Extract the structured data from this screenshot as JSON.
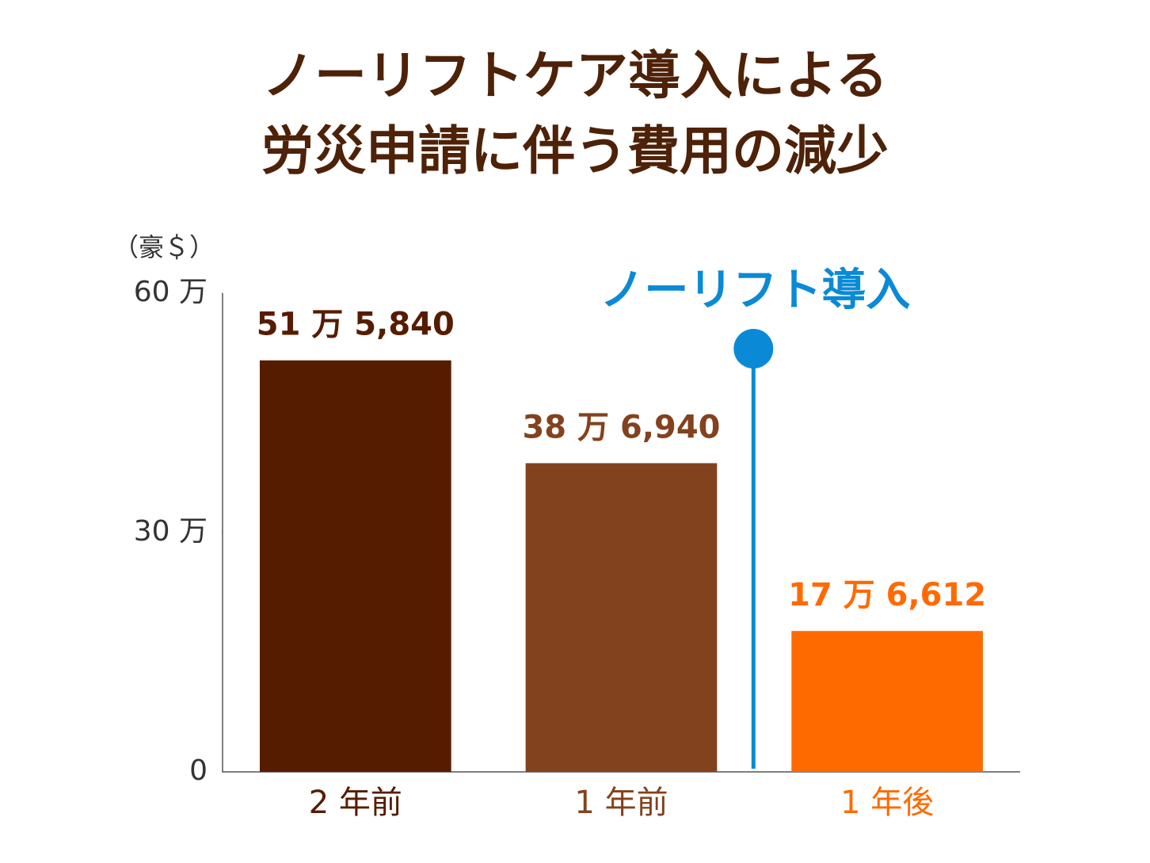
{
  "chart_data": {
    "type": "bar",
    "title": [
      "ノーリフトケア導入による",
      "労災申請に伴う費用の減少"
    ],
    "y_unit": "（豪＄）",
    "categories": [
      "2 年前",
      "1 年前",
      "1 年後"
    ],
    "values": [
      515840,
      386940,
      176612
    ],
    "value_labels": [
      "51 万 5,840",
      "38 万 6,940",
      "17 万 6,612"
    ],
    "colors": [
      "#561c00",
      "#83421e",
      "#ff6a00"
    ],
    "ylim": [
      0,
      600000
    ],
    "yticks": [
      0,
      {
        "value": 300000,
        "label": "30 万"
      },
      {
        "value": 600000,
        "label": "60 万"
      }
    ],
    "annotation": {
      "text": "ノーリフト導入",
      "color": "#0a8ad6"
    }
  }
}
